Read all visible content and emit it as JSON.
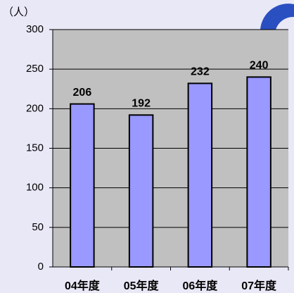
{
  "chart_data": {
    "type": "bar",
    "y_label": "（人）",
    "categories": [
      "04年度",
      "05年度",
      "06年度",
      "07年度"
    ],
    "values": [
      206,
      192,
      232,
      240
    ],
    "color": "#9999ff",
    "ylim": [
      0,
      300
    ],
    "yticks": [
      0,
      50,
      100,
      150,
      200,
      250,
      300
    ],
    "grid": true
  }
}
